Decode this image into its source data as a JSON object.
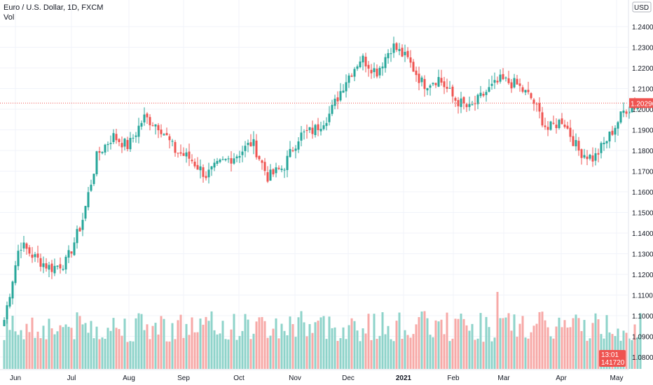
{
  "header": {
    "title": "Euro / U.S. Dollar, 1D, FXCM",
    "volume_label": "Vol"
  },
  "price_axis": {
    "currency": "USD",
    "ticks": [
      "1.24000",
      "1.23000",
      "1.22000",
      "1.21000",
      "1.20000",
      "1.19000",
      "1.18000",
      "1.17000",
      "1.16000",
      "1.15000",
      "1.14000",
      "1.13000",
      "1.12000",
      "1.11000",
      "1.10000",
      "1.09000",
      "1.08000"
    ],
    "last_price_label": "1.20296",
    "last_price": 1.20296,
    "countdown_label": "13:01",
    "volume_label": "141720"
  },
  "time_axis": {
    "ticks": [
      "Jun",
      "Jul",
      "Aug",
      "Sep",
      "Oct",
      "Nov",
      "Dec",
      "2021",
      "Feb",
      "Mar",
      "Apr",
      "May"
    ],
    "bold_tick": "2021"
  },
  "colors": {
    "up": "#26a69a",
    "down": "#ef5350",
    "up_volume": "#8ed3ca",
    "down_volume": "#f7a9a7",
    "last_price_line": "#ef5350",
    "grid": "#f0f3fa"
  },
  "chart_data": {
    "type": "candlestick",
    "title": "Euro / U.S. Dollar, 1D, FXCM",
    "ylim": [
      1.077,
      1.245
    ],
    "x_range": [
      "Jun",
      "May"
    ],
    "grid": true,
    "series": [
      {
        "name": "EUR/USD",
        "anchors": [
          [
            "Jun",
            1.098
          ],
          [
            "",
            1.135
          ],
          [
            "",
            1.128
          ],
          [
            "",
            1.123
          ],
          [
            "Jul",
            1.126
          ],
          [
            "",
            1.145
          ],
          [
            "",
            1.178
          ],
          [
            "Aug",
            1.187
          ],
          [
            "",
            1.182
          ],
          [
            "",
            1.196
          ],
          [
            "Sep",
            1.192
          ],
          [
            "",
            1.18
          ],
          [
            "",
            1.176
          ],
          [
            "",
            1.168
          ],
          [
            "Oct",
            1.174
          ],
          [
            "",
            1.178
          ],
          [
            "",
            1.184
          ],
          [
            "",
            1.167
          ],
          [
            "Nov",
            1.172
          ],
          [
            "",
            1.187
          ],
          [
            "",
            1.19
          ],
          [
            "",
            1.198
          ],
          [
            "Dec",
            1.214
          ],
          [
            "",
            1.225
          ],
          [
            "",
            1.218
          ],
          [
            "",
            1.231
          ],
          [
            "2021",
            1.224
          ],
          [
            "",
            1.212
          ],
          [
            "",
            1.215
          ],
          [
            "",
            1.205
          ],
          [
            "Feb",
            1.2
          ],
          [
            "",
            1.208
          ],
          [
            "",
            1.214
          ],
          [
            "",
            1.212
          ],
          [
            "Mar",
            1.205
          ],
          [
            "",
            1.19
          ],
          [
            "",
            1.195
          ],
          [
            "",
            1.18
          ],
          [
            "Apr",
            1.176
          ],
          [
            "",
            1.187
          ],
          [
            "",
            1.2
          ],
          [
            "",
            1.203
          ]
        ],
        "last_close": 1.20296
      },
      {
        "name": "Vol",
        "range": [
          0,
          1
        ]
      }
    ]
  }
}
